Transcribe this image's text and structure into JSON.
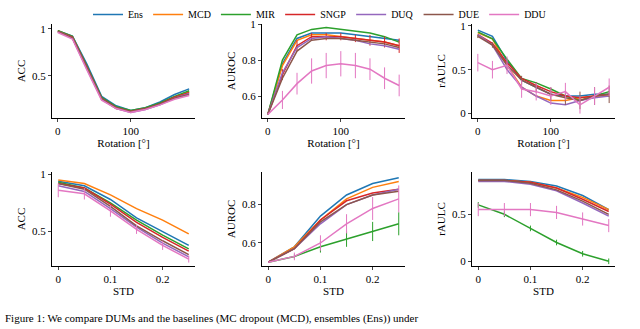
{
  "caption": "Figure 1: We compare DUMs and the baselines (MC dropout (MCD), ensembles (Ens)) under",
  "chart_data": [
    {
      "type": "line",
      "legend": "top",
      "grid": false,
      "x_label": "Rotation [°]",
      "y_label": "ACC",
      "x": [
        0,
        20,
        40,
        60,
        80,
        100,
        120,
        140,
        160,
        180
      ],
      "xlim": [
        -8,
        188
      ],
      "xticks": [
        0,
        100
      ],
      "ylim": [
        0.05,
        1.05
      ],
      "yticks": [
        0.5,
        1
      ],
      "series": [
        {
          "name": "Ens",
          "color": "#1f77b4",
          "values": [
            0.98,
            0.92,
            0.62,
            0.28,
            0.18,
            0.13,
            0.16,
            0.22,
            0.3,
            0.36
          ]
        },
        {
          "name": "MCD",
          "color": "#ff7f0e",
          "values": [
            0.98,
            0.91,
            0.58,
            0.25,
            0.15,
            0.12,
            0.15,
            0.2,
            0.27,
            0.33
          ]
        },
        {
          "name": "MIR",
          "color": "#2ca02c",
          "values": [
            0.98,
            0.92,
            0.6,
            0.27,
            0.17,
            0.13,
            0.16,
            0.21,
            0.28,
            0.34
          ]
        },
        {
          "name": "SNGP",
          "color": "#d62728",
          "values": [
            0.97,
            0.91,
            0.59,
            0.26,
            0.16,
            0.12,
            0.15,
            0.2,
            0.27,
            0.32
          ]
        },
        {
          "name": "DUQ",
          "color": "#9467bd",
          "values": [
            0.97,
            0.9,
            0.57,
            0.25,
            0.15,
            0.11,
            0.14,
            0.19,
            0.26,
            0.31
          ]
        },
        {
          "name": "DUE",
          "color": "#8c564b",
          "values": [
            0.97,
            0.9,
            0.58,
            0.26,
            0.16,
            0.12,
            0.15,
            0.2,
            0.26,
            0.3
          ]
        },
        {
          "name": "DDU",
          "color": "#e377c2",
          "values": [
            0.96,
            0.89,
            0.56,
            0.24,
            0.15,
            0.11,
            0.14,
            0.19,
            0.25,
            0.29
          ]
        }
      ]
    },
    {
      "type": "line",
      "grid": false,
      "x_label": "Rotation [°]",
      "y_label": "AUROC",
      "x": [
        0,
        20,
        40,
        60,
        80,
        100,
        120,
        140,
        160,
        180
      ],
      "xlim": [
        -8,
        188
      ],
      "xticks": [
        0,
        100
      ],
      "ylim": [
        0.48,
        1.0
      ],
      "yticks": [
        0.6,
        0.8,
        1
      ],
      "series": [
        {
          "name": "Ens",
          "color": "#1f77b4",
          "values": [
            0.5,
            0.78,
            0.92,
            0.95,
            0.95,
            0.95,
            0.94,
            0.93,
            0.92,
            0.91
          ]
        },
        {
          "name": "MCD",
          "color": "#ff7f0e",
          "values": [
            0.5,
            0.77,
            0.91,
            0.94,
            0.94,
            0.93,
            0.92,
            0.91,
            0.9,
            0.88
          ]
        },
        {
          "name": "MIR",
          "color": "#2ca02c",
          "values": [
            0.5,
            0.8,
            0.94,
            0.97,
            0.98,
            0.97,
            0.96,
            0.95,
            0.93,
            0.9
          ]
        },
        {
          "name": "SNGP",
          "color": "#d62728",
          "values": [
            0.5,
            0.72,
            0.88,
            0.93,
            0.93,
            0.93,
            0.92,
            0.91,
            0.9,
            0.88
          ],
          "errors": [
            0,
            0.03,
            0.03,
            0.02,
            0.02,
            0.02,
            0.02,
            0.03,
            0.03,
            0.04
          ]
        },
        {
          "name": "DUQ",
          "color": "#9467bd",
          "values": [
            0.5,
            0.73,
            0.87,
            0.92,
            0.93,
            0.92,
            0.91,
            0.89,
            0.88,
            0.86
          ]
        },
        {
          "name": "DUE",
          "color": "#8c564b",
          "values": [
            0.5,
            0.7,
            0.85,
            0.91,
            0.92,
            0.92,
            0.91,
            0.9,
            0.89,
            0.87
          ]
        },
        {
          "name": "DDU",
          "color": "#e377c2",
          "values": [
            0.5,
            0.58,
            0.67,
            0.74,
            0.77,
            0.78,
            0.77,
            0.75,
            0.7,
            0.66
          ],
          "errors": [
            0,
            0.05,
            0.06,
            0.07,
            0.07,
            0.07,
            0.07,
            0.06,
            0.06,
            0.06
          ]
        }
      ]
    },
    {
      "type": "line",
      "grid": false,
      "x_label": "Rotation [°]",
      "y_label": "rAULC",
      "x": [
        0,
        20,
        40,
        60,
        80,
        100,
        120,
        140,
        160,
        180
      ],
      "xlim": [
        -8,
        188
      ],
      "xticks": [
        0,
        100
      ],
      "ylim": [
        -0.05,
        1.02
      ],
      "yticks": [
        0,
        0.5,
        1
      ],
      "series": [
        {
          "name": "Ens",
          "color": "#1f77b4",
          "values": [
            0.95,
            0.88,
            0.6,
            0.38,
            0.3,
            0.22,
            0.2,
            0.2,
            0.22,
            0.22
          ]
        },
        {
          "name": "MCD",
          "color": "#ff7f0e",
          "values": [
            0.92,
            0.85,
            0.55,
            0.3,
            0.2,
            0.15,
            0.15,
            0.18,
            0.2,
            0.2
          ]
        },
        {
          "name": "MIR",
          "color": "#2ca02c",
          "values": [
            0.93,
            0.85,
            0.62,
            0.4,
            0.35,
            0.28,
            0.2,
            0.15,
            0.2,
            0.25
          ]
        },
        {
          "name": "SNGP",
          "color": "#d62728",
          "values": [
            0.9,
            0.8,
            0.58,
            0.4,
            0.32,
            0.25,
            0.2,
            0.18,
            0.2,
            0.22
          ]
        },
        {
          "name": "DUQ",
          "color": "#9467bd",
          "values": [
            0.9,
            0.78,
            0.5,
            0.3,
            0.2,
            0.12,
            0.1,
            0.15,
            0.18,
            0.2
          ]
        },
        {
          "name": "DUE",
          "color": "#8c564b",
          "values": [
            0.88,
            0.78,
            0.55,
            0.38,
            0.3,
            0.22,
            0.18,
            0.15,
            0.2,
            0.22
          ],
          "errors": [
            0.02,
            0.03,
            0.05,
            0.05,
            0.06,
            0.08,
            0.08,
            0.1,
            0.1,
            0.1
          ]
        },
        {
          "name": "DDU",
          "color": "#e377c2",
          "values": [
            0.58,
            0.5,
            0.55,
            0.28,
            0.25,
            0.2,
            0.25,
            0.1,
            0.2,
            0.3
          ],
          "errors": [
            0.1,
            0.1,
            0.1,
            0.1,
            0.1,
            0.1,
            0.1,
            0.1,
            0.1,
            0.1
          ]
        }
      ]
    },
    {
      "type": "line",
      "grid": false,
      "x_label": "STD",
      "y_label": "ACC",
      "x": [
        0,
        0.05,
        0.1,
        0.15,
        0.2,
        0.25
      ],
      "xlim": [
        -0.012,
        0.262
      ],
      "xticks": [
        0,
        0.1,
        0.2
      ],
      "ylim": [
        0.2,
        1.02
      ],
      "yticks": [
        0.5,
        1
      ],
      "series": [
        {
          "name": "Ens",
          "color": "#1f77b4",
          "values": [
            0.94,
            0.9,
            0.78,
            0.62,
            0.5,
            0.38
          ]
        },
        {
          "name": "MCD",
          "color": "#ff7f0e",
          "values": [
            0.95,
            0.92,
            0.82,
            0.7,
            0.6,
            0.48
          ]
        },
        {
          "name": "MIR",
          "color": "#2ca02c",
          "values": [
            0.93,
            0.88,
            0.75,
            0.6,
            0.47,
            0.35
          ]
        },
        {
          "name": "SNGP",
          "color": "#d62728",
          "values": [
            0.92,
            0.88,
            0.74,
            0.58,
            0.45,
            0.33
          ]
        },
        {
          "name": "DUQ",
          "color": "#9467bd",
          "values": [
            0.9,
            0.85,
            0.7,
            0.54,
            0.4,
            0.28
          ]
        },
        {
          "name": "DUE",
          "color": "#8c564b",
          "values": [
            0.92,
            0.87,
            0.72,
            0.55,
            0.42,
            0.3
          ]
        },
        {
          "name": "DDU",
          "color": "#e377c2",
          "values": [
            0.86,
            0.83,
            0.68,
            0.52,
            0.38,
            0.26
          ],
          "errors": [
            0.06,
            0.05,
            0.05,
            0.04,
            0.04,
            0.03
          ]
        }
      ]
    },
    {
      "type": "line",
      "grid": false,
      "x_label": "STD",
      "y_label": "AUROC",
      "x": [
        0,
        0.05,
        0.1,
        0.15,
        0.2,
        0.25
      ],
      "xlim": [
        -0.012,
        0.262
      ],
      "xticks": [
        0,
        0.1,
        0.2
      ],
      "ylim": [
        0.48,
        0.97
      ],
      "yticks": [
        0.6,
        0.8
      ],
      "series": [
        {
          "name": "Ens",
          "color": "#1f77b4",
          "values": [
            0.5,
            0.58,
            0.74,
            0.85,
            0.91,
            0.94
          ]
        },
        {
          "name": "MCD",
          "color": "#ff7f0e",
          "values": [
            0.5,
            0.58,
            0.72,
            0.83,
            0.89,
            0.92
          ]
        },
        {
          "name": "MIR",
          "color": "#2ca02c",
          "values": [
            0.5,
            0.53,
            0.58,
            0.62,
            0.66,
            0.7
          ],
          "errors": [
            0,
            0.01,
            0.03,
            0.04,
            0.05,
            0.06
          ]
        },
        {
          "name": "SNGP",
          "color": "#d62728",
          "values": [
            0.5,
            0.57,
            0.72,
            0.82,
            0.86,
            0.88
          ]
        },
        {
          "name": "DUQ",
          "color": "#9467bd",
          "values": [
            0.5,
            0.57,
            0.7,
            0.8,
            0.85,
            0.88
          ]
        },
        {
          "name": "DUE",
          "color": "#8c564b",
          "values": [
            0.5,
            0.57,
            0.71,
            0.8,
            0.85,
            0.87
          ]
        },
        {
          "name": "DDU",
          "color": "#e377c2",
          "values": [
            0.5,
            0.53,
            0.6,
            0.7,
            0.78,
            0.83
          ],
          "errors": [
            0,
            0.02,
            0.04,
            0.05,
            0.06,
            0.07
          ]
        }
      ]
    },
    {
      "type": "line",
      "grid": false,
      "x_label": "STD",
      "y_label": "rAULC",
      "x": [
        0,
        0.05,
        0.1,
        0.15,
        0.2,
        0.25
      ],
      "xlim": [
        -0.012,
        0.262
      ],
      "xticks": [
        0,
        0.1,
        0.2
      ],
      "ylim": [
        -0.05,
        0.95
      ],
      "yticks": [
        0,
        0.5
      ],
      "series": [
        {
          "name": "Ens",
          "color": "#1f77b4",
          "values": [
            0.87,
            0.87,
            0.85,
            0.8,
            0.7,
            0.55
          ]
        },
        {
          "name": "MCD",
          "color": "#ff7f0e",
          "values": [
            0.86,
            0.86,
            0.84,
            0.78,
            0.68,
            0.55
          ]
        },
        {
          "name": "MIR",
          "color": "#2ca02c",
          "values": [
            0.6,
            0.5,
            0.35,
            0.2,
            0.08,
            0.0
          ],
          "errors": [
            0.03,
            0.03,
            0.03,
            0.03,
            0.03,
            0.03
          ]
        },
        {
          "name": "SNGP",
          "color": "#d62728",
          "values": [
            0.86,
            0.86,
            0.84,
            0.78,
            0.66,
            0.53
          ]
        },
        {
          "name": "DUQ",
          "color": "#9467bd",
          "values": [
            0.85,
            0.85,
            0.82,
            0.75,
            0.62,
            0.48
          ]
        },
        {
          "name": "DUE",
          "color": "#8c564b",
          "values": [
            0.86,
            0.86,
            0.83,
            0.76,
            0.64,
            0.5
          ]
        },
        {
          "name": "DDU",
          "color": "#e377c2",
          "values": [
            0.55,
            0.55,
            0.55,
            0.52,
            0.45,
            0.38
          ],
          "errors": [
            0.07,
            0.07,
            0.07,
            0.07,
            0.07,
            0.07
          ]
        }
      ]
    }
  ]
}
